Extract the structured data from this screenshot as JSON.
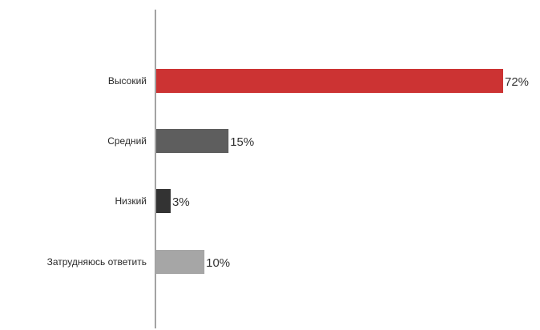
{
  "chart_data": {
    "type": "bar",
    "orientation": "horizontal",
    "title": "",
    "xlabel": "",
    "ylabel": "",
    "xlim": [
      0,
      72
    ],
    "grid": false,
    "legend": "none",
    "categories": [
      "Высокий",
      "Средний",
      "Низкий",
      "Затрудняюсь ответить"
    ],
    "values": [
      72,
      15,
      3,
      10
    ],
    "value_labels": [
      "72%",
      "15%",
      "3%",
      "10%"
    ],
    "colors": [
      "#cc3333",
      "#5e5e5e",
      "#333333",
      "#a6a6a6"
    ]
  }
}
